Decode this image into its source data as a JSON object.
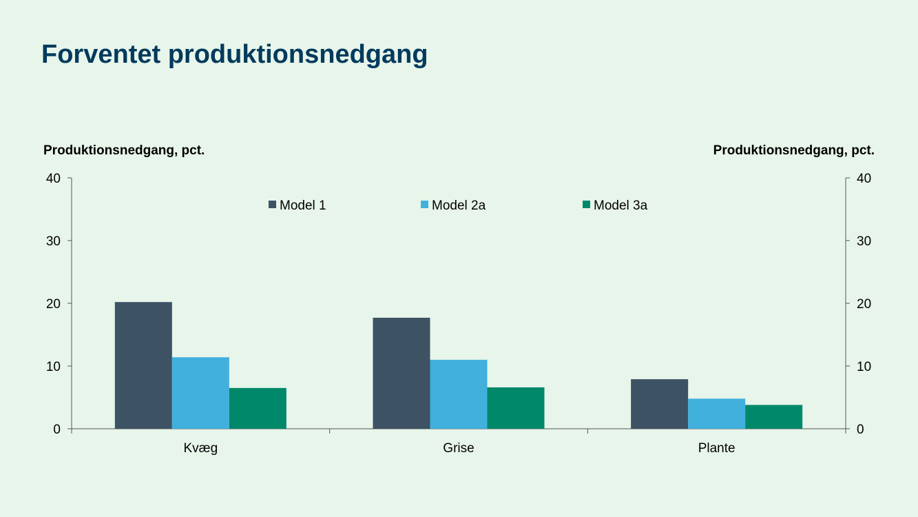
{
  "title": "Forventet produktionsnedgang",
  "chart_data": {
    "type": "bar",
    "categories": [
      "Kvæg",
      "Grise",
      "Plante"
    ],
    "series": [
      {
        "name": "Model 1",
        "color": "#3d5263",
        "values": [
          20.2,
          17.7,
          7.9
        ]
      },
      {
        "name": "Model 2a",
        "color": "#41b0dd",
        "values": [
          11.4,
          11.0,
          4.8
        ]
      },
      {
        "name": "Model 3a",
        "color": "#00886a",
        "values": [
          6.5,
          6.6,
          3.8
        ]
      }
    ],
    "ylabel_left": "Produktionsnedgang, pct.",
    "ylabel_right": "Produktionsnedgang, pct.",
    "ylim": [
      0,
      40
    ],
    "yticks": [
      0,
      10,
      20,
      30,
      40
    ],
    "grid": false,
    "legend_position": "top-center"
  }
}
